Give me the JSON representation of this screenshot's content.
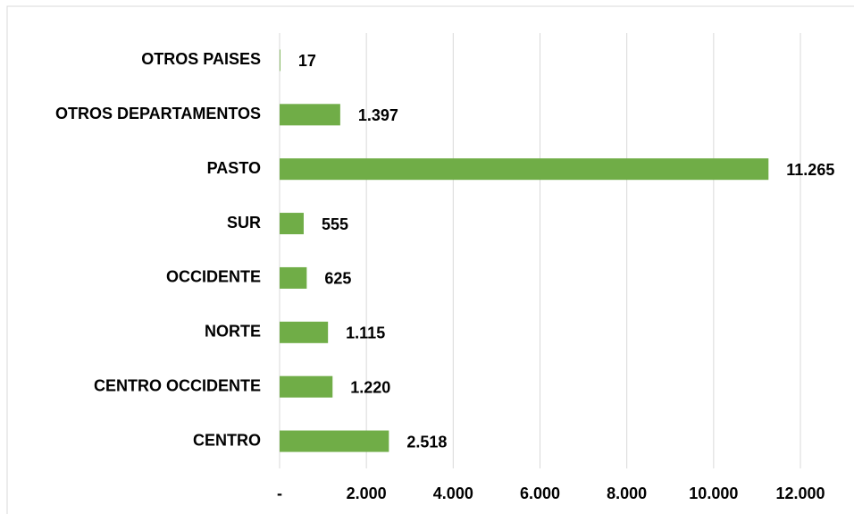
{
  "chart_data": {
    "type": "bar",
    "orientation": "horizontal",
    "categories": [
      "OTROS PAISES",
      "OTROS DEPARTAMENTOS",
      "PASTO",
      "SUR",
      "OCCIDENTE",
      "NORTE",
      "CENTRO OCCIDENTE",
      "CENTRO"
    ],
    "values": [
      17,
      1397,
      11265,
      555,
      625,
      1115,
      1220,
      2518
    ],
    "value_labels": [
      "17",
      "1.397",
      "11.265",
      "555",
      "625",
      "1.115",
      "1.220",
      "2.518"
    ],
    "color": "#70ad47",
    "xlim": [
      0,
      12000
    ],
    "xticks": [
      {
        "value": 0,
        "label": "-"
      },
      {
        "value": 2000,
        "label": "2.000"
      },
      {
        "value": 4000,
        "label": "4.000"
      },
      {
        "value": 6000,
        "label": "6.000"
      },
      {
        "value": 8000,
        "label": "8.000"
      },
      {
        "value": 10000,
        "label": "10.000"
      },
      {
        "value": 12000,
        "label": "12.000"
      }
    ],
    "grid": true
  }
}
